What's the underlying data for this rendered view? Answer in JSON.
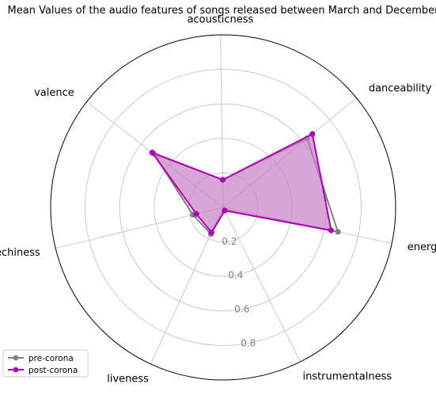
{
  "chart_data": {
    "type": "radar",
    "title": "Mean Values of the audio features of songs released between March and December",
    "axes": [
      "energy",
      "danceability",
      "acousticness",
      "valence",
      "speechiness",
      "liveness",
      "instrumentalness"
    ],
    "rlim": [
      0,
      1
    ],
    "rticks": [
      0.2,
      0.4,
      0.6,
      0.8
    ],
    "rtick_labels": [
      "0.2",
      "0.4",
      "0.6",
      "0.8"
    ],
    "grid": true,
    "legend_position": "lower-left",
    "series": [
      {
        "name": "pre-corona",
        "color": "#808080",
        "marker": "circle",
        "values": [
          0.68,
          0.63,
          0.16,
          0.51,
          0.18,
          0.17,
          0.02
        ]
      },
      {
        "name": "post-corona",
        "color": "#b000b5",
        "fill_color": "#c47cc2",
        "marker": "circle",
        "values": [
          0.64,
          0.67,
          0.16,
          0.52,
          0.16,
          0.16,
          0.02
        ]
      }
    ]
  }
}
